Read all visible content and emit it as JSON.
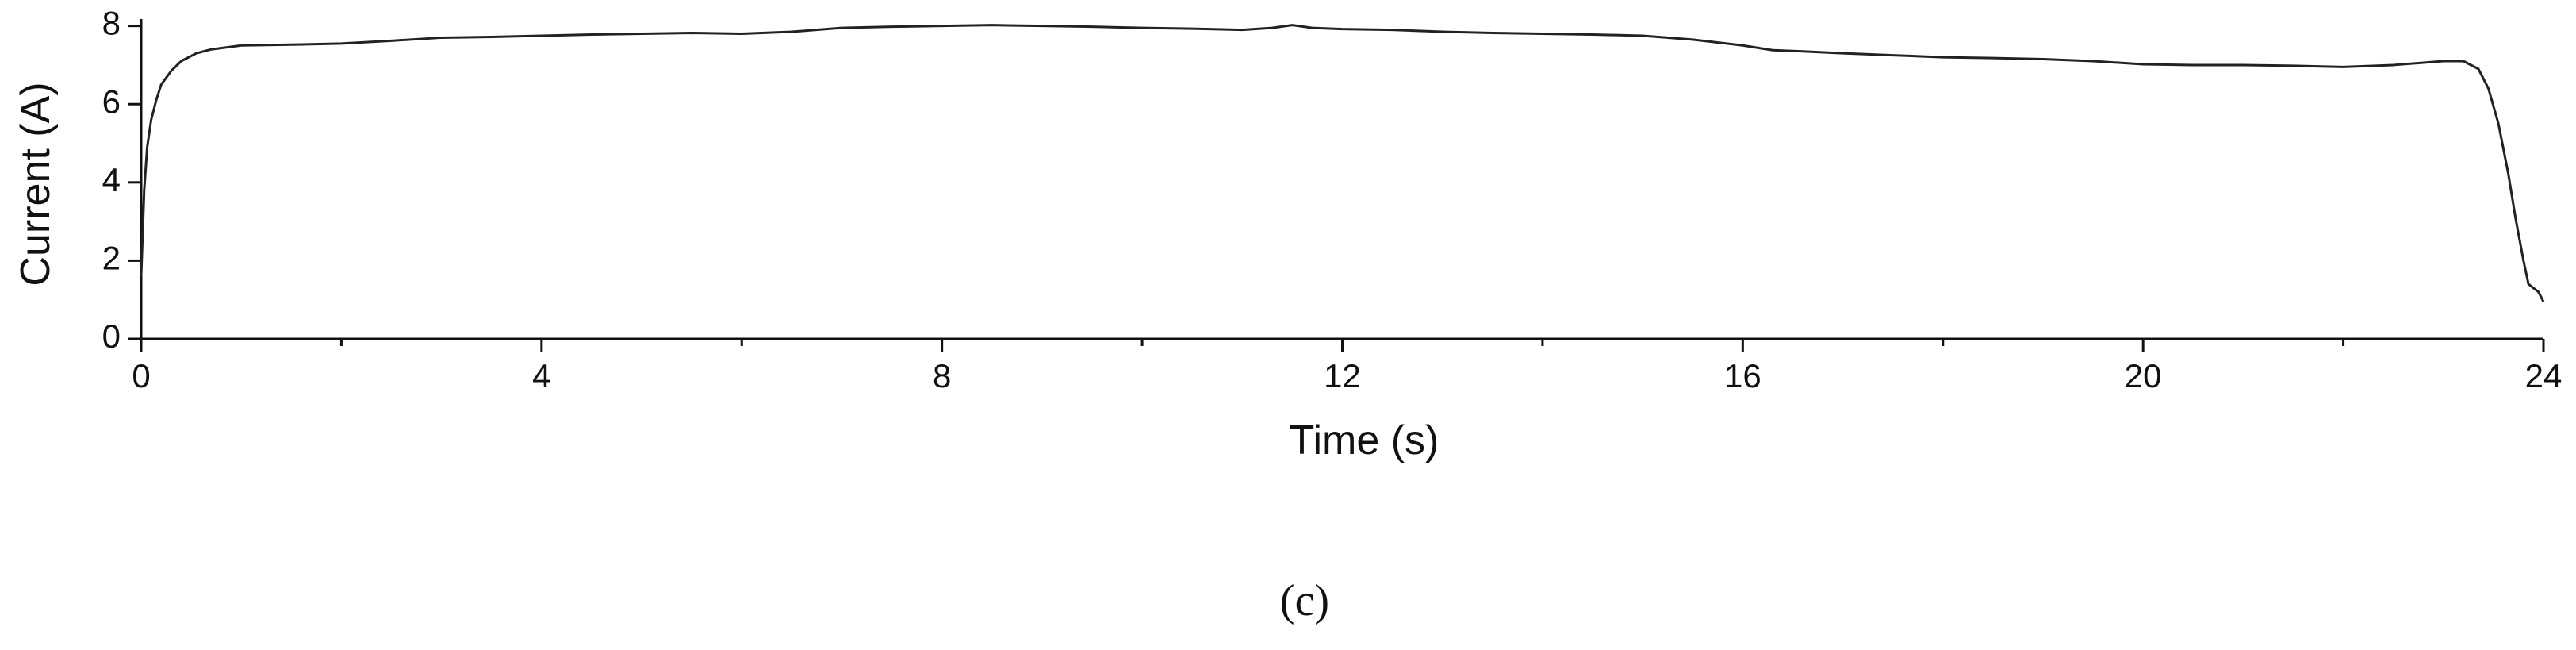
{
  "chart_data": {
    "type": "line",
    "x_label": "Time (s)",
    "y_label": "Current (A)",
    "caption": "(c)",
    "xlim": [
      0,
      24
    ],
    "ylim": [
      0,
      8.5
    ],
    "xticks": [
      0,
      4,
      8,
      12,
      16,
      20,
      24
    ],
    "xminor_ticks": [
      2,
      6,
      10,
      14,
      18,
      22
    ],
    "yticks": [
      0,
      2,
      4,
      6,
      8
    ],
    "grid": false,
    "series": [
      {
        "name": "Current",
        "color": "#222222",
        "x": [
          0,
          0.03,
          0.06,
          0.1,
          0.15,
          0.2,
          0.3,
          0.4,
          0.55,
          0.7,
          0.85,
          1,
          1.5,
          2,
          2.5,
          3,
          3.5,
          4,
          4.5,
          5,
          5.5,
          6,
          6.5,
          7,
          7.5,
          8,
          8.5,
          9,
          9.5,
          10,
          10.5,
          11,
          11.3,
          11.5,
          11.7,
          12,
          12.5,
          13,
          13.5,
          14,
          14.5,
          15,
          15.5,
          16,
          16.3,
          16.6,
          17,
          17.5,
          18,
          18.5,
          19,
          19.5,
          20,
          20.5,
          21,
          21.5,
          22,
          22.5,
          23,
          23.2,
          23.35,
          23.45,
          23.55,
          23.65,
          23.72,
          23.8,
          23.85,
          23.9,
          23.95,
          24
        ],
        "values": [
          1.6,
          3.8,
          4.9,
          5.6,
          6.1,
          6.5,
          6.85,
          7.1,
          7.3,
          7.4,
          7.45,
          7.5,
          7.52,
          7.55,
          7.62,
          7.7,
          7.72,
          7.75,
          7.78,
          7.8,
          7.82,
          7.8,
          7.85,
          7.95,
          7.98,
          8.0,
          8.02,
          8.0,
          7.98,
          7.95,
          7.93,
          7.9,
          7.95,
          8.02,
          7.95,
          7.92,
          7.9,
          7.85,
          7.82,
          7.8,
          7.78,
          7.75,
          7.65,
          7.5,
          7.38,
          7.35,
          7.3,
          7.25,
          7.2,
          7.18,
          7.15,
          7.1,
          7.02,
          7.0,
          7.0,
          6.98,
          6.95,
          7.0,
          7.1,
          7.1,
          6.9,
          6.4,
          5.5,
          4.2,
          3.1,
          2.0,
          1.4,
          1.3,
          1.2,
          0.95
        ]
      }
    ]
  }
}
